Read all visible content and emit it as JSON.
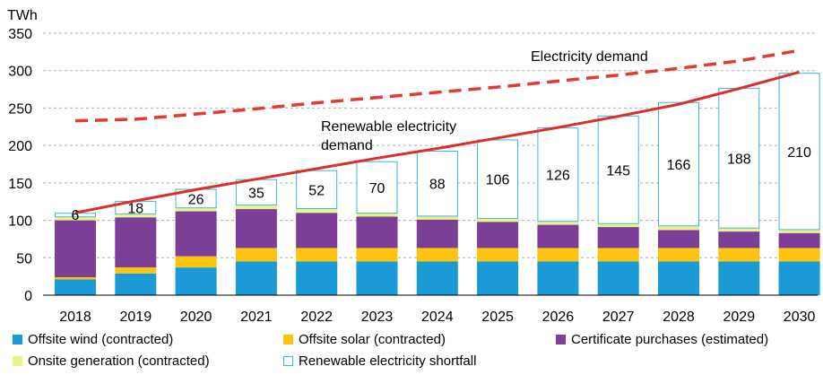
{
  "chart_data": {
    "type": "bar",
    "stacked": true,
    "y_unit": "TWh",
    "categories": [
      "2018",
      "2019",
      "2020",
      "2021",
      "2022",
      "2023",
      "2024",
      "2025",
      "2026",
      "2027",
      "2028",
      "2029",
      "2030"
    ],
    "ylim": [
      0,
      350
    ],
    "yticks": [
      0,
      50,
      100,
      150,
      200,
      250,
      300,
      350
    ],
    "grid": "horizontal dashed",
    "series": [
      {
        "name": "Offsite wind (contracted)",
        "color": "#1a9ad6",
        "style": "fill",
        "values": [
          21,
          29,
          37,
          45,
          45,
          45,
          45,
          45,
          45,
          45,
          45,
          45,
          45
        ]
      },
      {
        "name": "Offsite solar (contracted)",
        "color": "#fcc40f",
        "style": "fill",
        "values": [
          3,
          8,
          15,
          18,
          18,
          18,
          18,
          18,
          18,
          18,
          18,
          18,
          18
        ]
      },
      {
        "name": "Certificate purchases (estimated)",
        "color": "#7b3f98",
        "style": "fill",
        "values": [
          76,
          67,
          60,
          52,
          47,
          42,
          38,
          35,
          31,
          28,
          24,
          22,
          20
        ]
      },
      {
        "name": "Onsite generation (contracted)",
        "color": "#eaf28a",
        "style": "fill",
        "values": [
          4,
          4,
          4,
          5,
          5,
          4,
          4,
          4,
          4,
          4,
          5,
          4,
          4
        ]
      },
      {
        "name": "Renewable electricity shortfall",
        "color": "#3db4dc",
        "style": "outline",
        "values": [
          6,
          18,
          26,
          35,
          52,
          70,
          88,
          106,
          126,
          145,
          166,
          188,
          210
        ]
      }
    ],
    "lines": [
      {
        "name": "Electricity demand",
        "color": "#e53a2f",
        "style": "dashed",
        "values": [
          233,
          235,
          242,
          249,
          257,
          264,
          271,
          278,
          286,
          294,
          303,
          313,
          327
        ]
      },
      {
        "name": "Renewable electricity demand",
        "color": "#d9302b",
        "style": "solid",
        "values": [
          110,
          126,
          141,
          155,
          169,
          183,
          196,
          210,
          224,
          239,
          255,
          276,
          298
        ]
      }
    ],
    "annotations": {
      "electricity_demand": "Electricity demand",
      "renewable_demand_line1": "Renewable electricity",
      "renewable_demand_line2": "demand"
    }
  }
}
